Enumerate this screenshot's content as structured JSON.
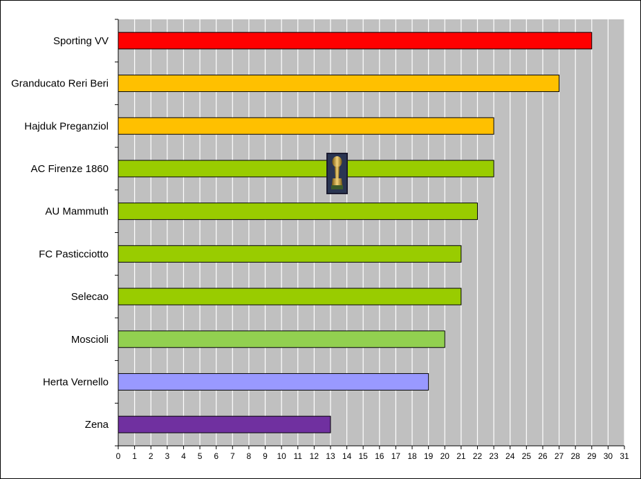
{
  "chart_data": {
    "type": "bar",
    "orientation": "horizontal",
    "categories": [
      "Sporting VV",
      "Granducato Reri Beri",
      "Hajduk Preganziol",
      "AC Firenze 1860",
      "AU Mammuth",
      "FC Pasticciotto",
      "Selecao",
      "Moscioli",
      "Herta Vernello",
      "Zena"
    ],
    "values": [
      29,
      27,
      23,
      23,
      22,
      21,
      21,
      20,
      19,
      13
    ],
    "bar_colors": [
      "#ff0000",
      "#ffc000",
      "#ffc000",
      "#99cc00",
      "#99cc00",
      "#99cc00",
      "#99cc00",
      "#92d050",
      "#9999ff",
      "#7030a0"
    ],
    "x_ticks": [
      "0",
      "1",
      "2",
      "3",
      "4",
      "5",
      "6",
      "7",
      "8",
      "9",
      "10",
      "11",
      "12",
      "13",
      "14",
      "15",
      "16",
      "17",
      "18",
      "19",
      "20",
      "21",
      "22",
      "23",
      "24",
      "25",
      "26",
      "27",
      "28",
      "29",
      "30",
      "31"
    ],
    "xlim": [
      0,
      31
    ],
    "grid": "vertical",
    "plot_background": "#c0c0c0",
    "title": "",
    "xlabel": "",
    "ylabel": "",
    "annotation_icon": "trophy-icon"
  }
}
